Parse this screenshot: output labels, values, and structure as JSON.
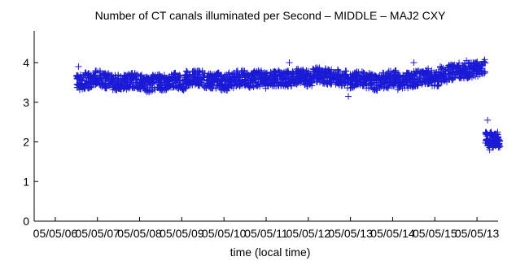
{
  "chart_data": {
    "type": "scatter",
    "title": "Number of CT canals illuminated per Second – MIDDLE – MAJ2 CXY",
    "xlabel": "time (local time)",
    "ylabel": "",
    "marker": "plus",
    "color": "#1a1ad6",
    "grid": false,
    "xlim": [
      0,
      11.0
    ],
    "ylim": [
      0,
      4.8
    ],
    "yticks": [
      0,
      1,
      2,
      3,
      4
    ],
    "xtick_labels": [
      "05/05/06",
      "05/05/07",
      "05/05/08",
      "05/05/09",
      "05/05/10",
      "05/05/11",
      "05/05/12",
      "05/05/13",
      "05/05/14",
      "05/05/15",
      "05/05/13"
    ],
    "xtick_positions": [
      0.5,
      1.5,
      2.5,
      3.5,
      4.5,
      5.5,
      6.5,
      7.5,
      8.5,
      9.5,
      10.5
    ],
    "series": [
      {
        "x": [
          1.0,
          1.2,
          1.4,
          1.6,
          1.8,
          2.0,
          2.2,
          2.4,
          2.6,
          2.8,
          3.0,
          3.2,
          3.4,
          3.6,
          3.8,
          4.0,
          4.2,
          4.4,
          4.6,
          4.8,
          5.0,
          5.2,
          5.4,
          5.6,
          5.8,
          6.0,
          6.2,
          6.4,
          6.6,
          6.8,
          7.0,
          7.2,
          7.4,
          7.6,
          7.8,
          8.0,
          8.2,
          8.4,
          8.6,
          8.8,
          9.0,
          9.2,
          9.4,
          9.6,
          9.8,
          10.0,
          10.2,
          10.4,
          10.6,
          10.7,
          10.75,
          10.8,
          10.85,
          10.9,
          10.95,
          11.0
        ],
        "y": [
          3.5,
          3.55,
          3.6,
          3.55,
          3.5,
          3.5,
          3.55,
          3.5,
          3.45,
          3.5,
          3.5,
          3.55,
          3.5,
          3.6,
          3.6,
          3.55,
          3.55,
          3.5,
          3.55,
          3.6,
          3.55,
          3.6,
          3.55,
          3.6,
          3.6,
          3.6,
          3.65,
          3.6,
          3.7,
          3.65,
          3.65,
          3.6,
          3.55,
          3.6,
          3.55,
          3.5,
          3.55,
          3.6,
          3.5,
          3.55,
          3.6,
          3.65,
          3.6,
          3.7,
          3.75,
          3.8,
          3.8,
          3.85,
          3.9,
          2.1,
          2.0,
          2.1,
          2.0,
          2.05,
          2.1,
          2.0
        ],
        "spread": [
          0.2,
          0.2,
          0.2,
          0.2,
          0.2,
          0.2,
          0.2,
          0.2,
          0.2,
          0.2,
          0.2,
          0.2,
          0.2,
          0.2,
          0.2,
          0.2,
          0.2,
          0.2,
          0.2,
          0.2,
          0.2,
          0.2,
          0.2,
          0.2,
          0.2,
          0.2,
          0.2,
          0.2,
          0.2,
          0.2,
          0.2,
          0.2,
          0.2,
          0.2,
          0.2,
          0.2,
          0.2,
          0.2,
          0.2,
          0.2,
          0.2,
          0.2,
          0.2,
          0.2,
          0.2,
          0.2,
          0.2,
          0.2,
          0.2,
          0.15,
          0.15,
          0.15,
          0.15,
          0.15,
          0.15,
          0.15
        ]
      }
    ],
    "outliers": [
      {
        "x": 1.05,
        "y": 3.9
      },
      {
        "x": 6.05,
        "y": 4.0
      },
      {
        "x": 7.45,
        "y": 3.15
      },
      {
        "x": 9.0,
        "y": 4.0
      },
      {
        "x": 10.25,
        "y": 4.05
      },
      {
        "x": 10.75,
        "y": 2.55
      },
      {
        "x": 10.8,
        "y": 1.8
      },
      {
        "x": 10.95,
        "y": 1.9
      }
    ]
  }
}
